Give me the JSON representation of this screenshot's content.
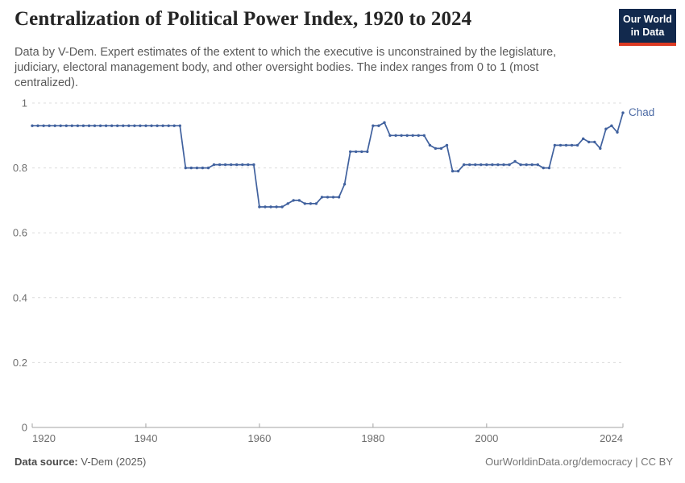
{
  "header": {
    "title": "Centralization of Political Power Index, 1920 to 2024",
    "subtitle": "Data by V-Dem. Expert estimates of the extent to which the executive is unconstrained by the legislature, judiciary, electoral management body, and other oversight bodies. The index ranges from 0 to 1 (most centralized).",
    "logo": {
      "line1": "Our World",
      "line2": "in Data",
      "bg_color": "#12294d",
      "accent_color": "#dc3a22"
    }
  },
  "chart_data": {
    "type": "line",
    "title": "Centralization of Political Power Index, 1920 to 2024",
    "xlabel": "",
    "ylabel": "",
    "xlim": [
      1920,
      2024
    ],
    "ylim": [
      0,
      1
    ],
    "grid": "horizontal-dashed",
    "legend_position": "end-of-line-label",
    "x_ticks": [
      1920,
      1940,
      1960,
      1980,
      2000,
      2024
    ],
    "y_ticks": [
      0,
      0.2,
      0.4,
      0.6,
      0.8,
      1
    ],
    "y_tick_labels": [
      "0",
      "0.2",
      "0.4",
      "0.6",
      "0.8",
      "1"
    ],
    "x_start": 1920,
    "x_step": 1,
    "series": [
      {
        "name": "Chad",
        "color": "#40619e",
        "label_color": "#4d6ba5",
        "values": [
          0.93,
          0.93,
          0.93,
          0.93,
          0.93,
          0.93,
          0.93,
          0.93,
          0.93,
          0.93,
          0.93,
          0.93,
          0.93,
          0.93,
          0.93,
          0.93,
          0.93,
          0.93,
          0.93,
          0.93,
          0.93,
          0.93,
          0.93,
          0.93,
          0.93,
          0.93,
          0.93,
          0.8,
          0.8,
          0.8,
          0.8,
          0.8,
          0.81,
          0.81,
          0.81,
          0.81,
          0.81,
          0.81,
          0.81,
          0.81,
          0.68,
          0.68,
          0.68,
          0.68,
          0.68,
          0.69,
          0.7,
          0.7,
          0.69,
          0.69,
          0.69,
          0.71,
          0.71,
          0.71,
          0.71,
          0.75,
          0.85,
          0.85,
          0.85,
          0.85,
          0.93,
          0.93,
          0.94,
          0.9,
          0.9,
          0.9,
          0.9,
          0.9,
          0.9,
          0.9,
          0.87,
          0.86,
          0.86,
          0.87,
          0.79,
          0.79,
          0.81,
          0.81,
          0.81,
          0.81,
          0.81,
          0.81,
          0.81,
          0.81,
          0.81,
          0.82,
          0.81,
          0.81,
          0.81,
          0.81,
          0.8,
          0.8,
          0.87,
          0.87,
          0.87,
          0.87,
          0.87,
          0.89,
          0.88,
          0.88,
          0.86,
          0.92,
          0.93,
          0.91,
          0.97
        ]
      }
    ],
    "colors": {
      "grid": "#dcdcdc",
      "axis": "#a3a3a3",
      "tick_text": "#6e6e6e"
    }
  },
  "footer": {
    "source_label": "Data source:",
    "source_value": " V-Dem (2025)",
    "attribution": "OurWorldinData.org/democracy | CC BY"
  }
}
